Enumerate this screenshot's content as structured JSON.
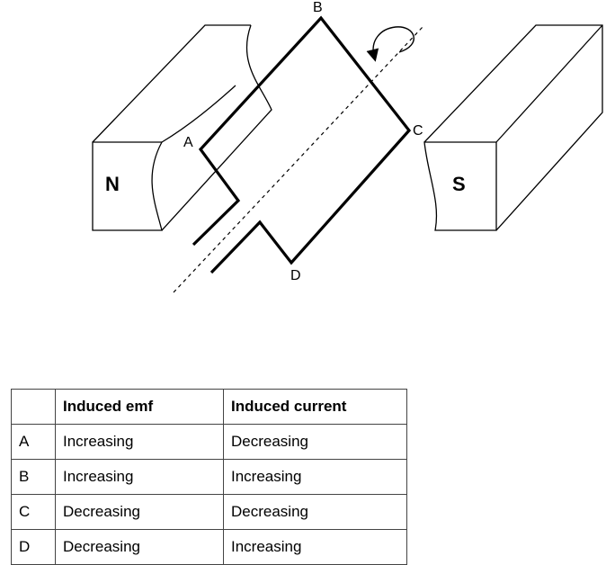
{
  "diagram": {
    "poles": {
      "north": "N",
      "south": "S"
    },
    "points": {
      "a": "A",
      "b": "B",
      "c": "C",
      "d": "D"
    }
  },
  "table": {
    "headers": [
      "",
      "Induced emf",
      "Induced current"
    ],
    "rows": [
      [
        "A",
        "Increasing",
        "Decreasing"
      ],
      [
        "B",
        "Increasing",
        "Increasing"
      ],
      [
        "C",
        "Decreasing",
        "Decreasing"
      ],
      [
        "D",
        "Decreasing",
        "Increasing"
      ]
    ]
  }
}
